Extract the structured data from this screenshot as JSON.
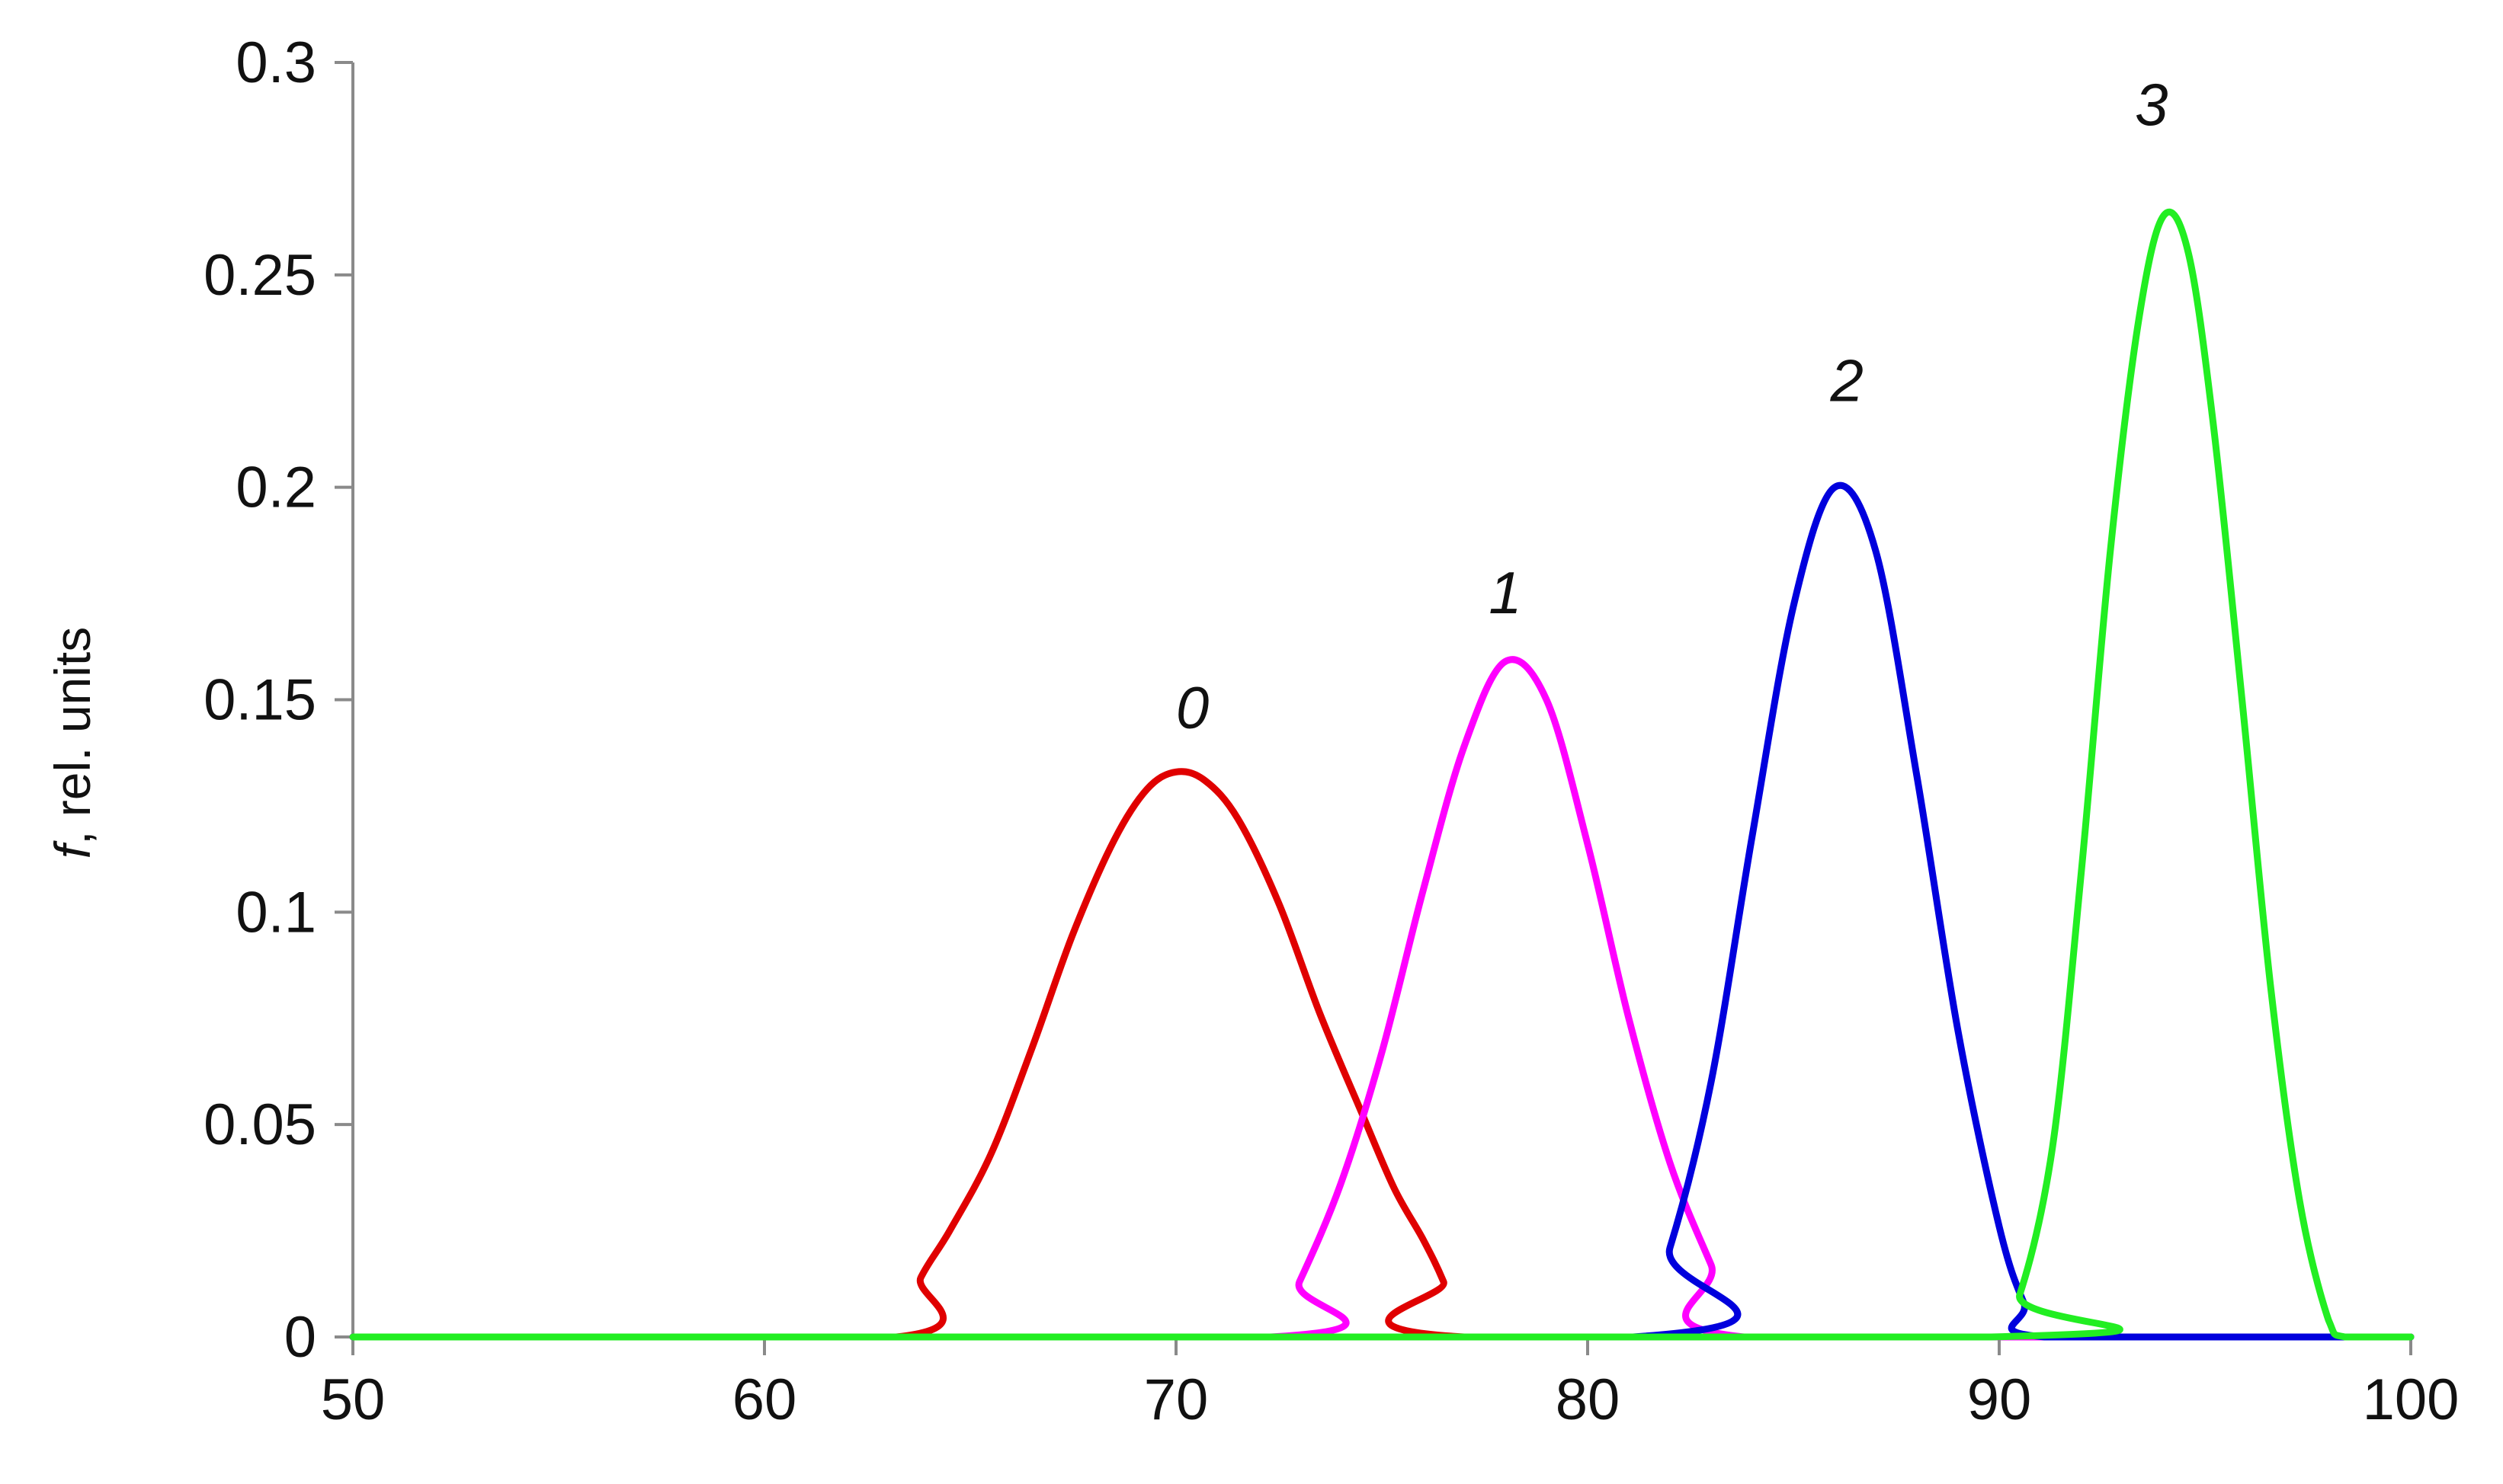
{
  "chart_data": {
    "type": "line",
    "title": "",
    "xlabel": "",
    "ylabel": {
      "italic_part": "f",
      "rest": ", rel. units"
    },
    "xlim": [
      50,
      100
    ],
    "ylim": [
      0,
      0.3
    ],
    "x_ticks": [
      50,
      60,
      70,
      80,
      90,
      100
    ],
    "x_tick_labels": [
      "50",
      "60",
      "70",
      "80",
      "90",
      "100"
    ],
    "y_ticks": [
      0,
      0.05,
      0.1,
      0.15,
      0.2,
      0.25,
      0.3
    ],
    "y_tick_labels": [
      "0",
      "0.05",
      "0.1",
      "0.15",
      "0.2",
      "0.25",
      "0.3"
    ],
    "grid": false,
    "legend": "none",
    "series": [
      {
        "name": "0",
        "color": "#e00000",
        "label_at": {
          "x": 70.4,
          "y": 0.148
        },
        "points": [
          [
            50,
            0
          ],
          [
            63.2,
            0
          ],
          [
            63.8,
            0.014
          ],
          [
            64.5,
            0.025
          ],
          [
            65.5,
            0.043
          ],
          [
            66.5,
            0.068
          ],
          [
            67.5,
            0.095
          ],
          [
            68.5,
            0.117
          ],
          [
            69.3,
            0.129
          ],
          [
            70,
            0.133
          ],
          [
            70.7,
            0.131
          ],
          [
            71.5,
            0.122
          ],
          [
            72.5,
            0.102
          ],
          [
            73.5,
            0.076
          ],
          [
            74.5,
            0.053
          ],
          [
            75.3,
            0.035
          ],
          [
            76,
            0.023
          ],
          [
            76.5,
            0.013
          ],
          [
            77,
            0
          ],
          [
            100,
            0
          ]
        ]
      },
      {
        "name": "1",
        "color": "#ff00ff",
        "label_at": {
          "x": 78.0,
          "y": 0.175
        },
        "points": [
          [
            50,
            0
          ],
          [
            72.3,
            0
          ],
          [
            73,
            0.013
          ],
          [
            74,
            0.036
          ],
          [
            75,
            0.067
          ],
          [
            76,
            0.105
          ],
          [
            77,
            0.139
          ],
          [
            78,
            0.159
          ],
          [
            79,
            0.15
          ],
          [
            80,
            0.116
          ],
          [
            81,
            0.075
          ],
          [
            82,
            0.041
          ],
          [
            83,
            0.017
          ],
          [
            83.8,
            0
          ],
          [
            100,
            0
          ]
        ]
      },
      {
        "name": "2",
        "color": "#0000dd",
        "label_at": {
          "x": 86.3,
          "y": 0.225
        },
        "points": [
          [
            50,
            0
          ],
          [
            81.1,
            0
          ],
          [
            82,
            0.021
          ],
          [
            83,
            0.06
          ],
          [
            84,
            0.118
          ],
          [
            85,
            0.172
          ],
          [
            86,
            0.2
          ],
          [
            87,
            0.185
          ],
          [
            88,
            0.132
          ],
          [
            89,
            0.072
          ],
          [
            90,
            0.026
          ],
          [
            90.6,
            0.008
          ],
          [
            91.1,
            0
          ],
          [
            100,
            0
          ]
        ]
      },
      {
        "name": "3",
        "color": "#22ee22",
        "label_at": {
          "x": 93.7,
          "y": 0.29
        },
        "points": [
          [
            50,
            0
          ],
          [
            89.8,
            0
          ],
          [
            90.5,
            0.01
          ],
          [
            91.3,
            0.045
          ],
          [
            92,
            0.11
          ],
          [
            92.7,
            0.185
          ],
          [
            93.4,
            0.24
          ],
          [
            94,
            0.264
          ],
          [
            94.6,
            0.255
          ],
          [
            95.2,
            0.215
          ],
          [
            95.9,
            0.15
          ],
          [
            96.6,
            0.082
          ],
          [
            97.3,
            0.032
          ],
          [
            98,
            0.004
          ],
          [
            98.4,
            0
          ],
          [
            100,
            0
          ]
        ]
      }
    ]
  }
}
